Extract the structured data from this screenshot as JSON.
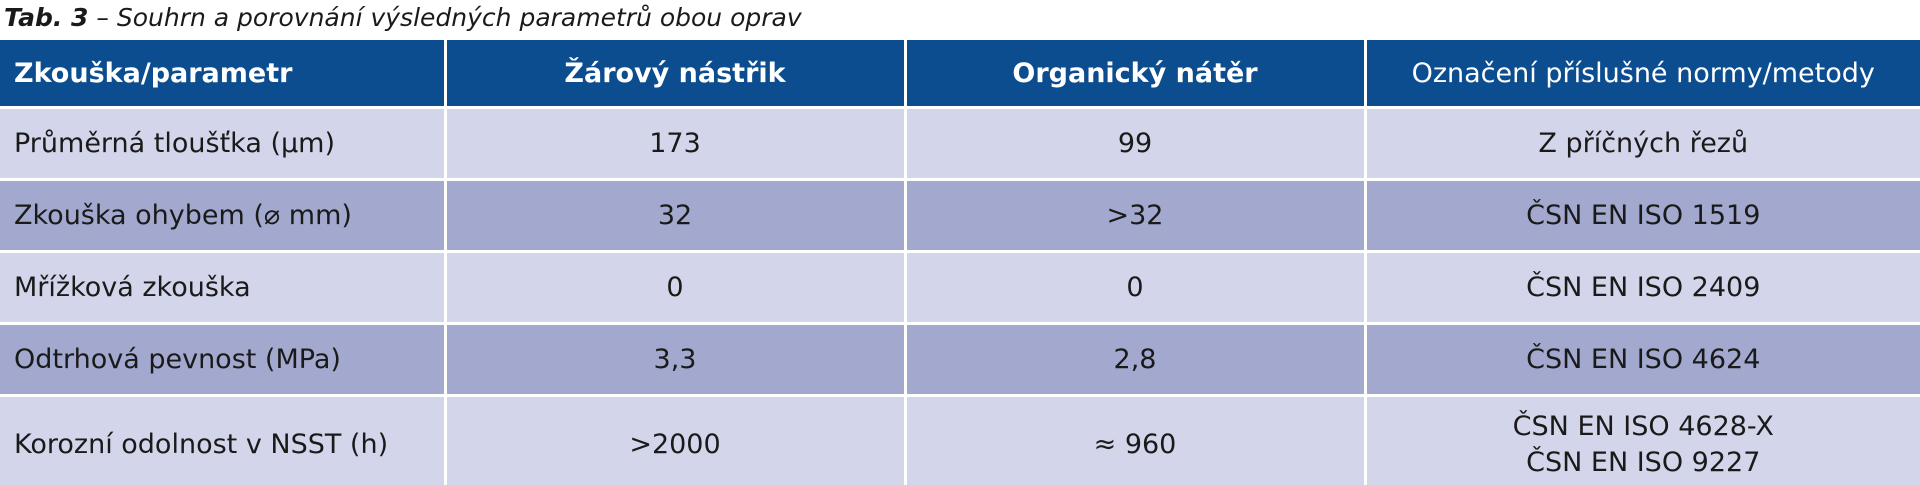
{
  "caption": {
    "label": "Tab. 3",
    "text": " – Souhrn a porovnání výsledných parametrů obou oprav"
  },
  "table": {
    "headers": [
      "Zkouška/parametr",
      "Žárový nástřik",
      "Organický nátěr",
      "Označení příslušné normy/metody"
    ],
    "rows": [
      {
        "parameter": "Průměrná tloušťka (µm)",
        "thermal_spray": "173",
        "organic_coating": "99",
        "standard": [
          "Z příčných řezů"
        ]
      },
      {
        "parameter": "Zkouška ohybem (⌀ mm)",
        "thermal_spray": "32",
        "organic_coating": ">32",
        "standard": [
          "ČSN EN ISO 1519"
        ]
      },
      {
        "parameter": "Mřížková zkouška",
        "thermal_spray": "0",
        "organic_coating": "0",
        "standard": [
          "ČSN EN ISO 2409"
        ]
      },
      {
        "parameter": "Odtrhová pevnost (MPa)",
        "thermal_spray": "3,3",
        "organic_coating": "2,8",
        "standard": [
          "ČSN EN ISO 4624"
        ]
      },
      {
        "parameter": "Korozní odolnost v NSST (h)",
        "thermal_spray": ">2000",
        "organic_coating": "≈ 960",
        "standard": [
          "ČSN EN ISO 4628-X",
          "ČSN EN ISO 9227"
        ]
      }
    ]
  },
  "colors": {
    "header_bg": "#0c4d8f",
    "row_light": "#d3d6ea",
    "row_dark": "#a3a9ce"
  }
}
